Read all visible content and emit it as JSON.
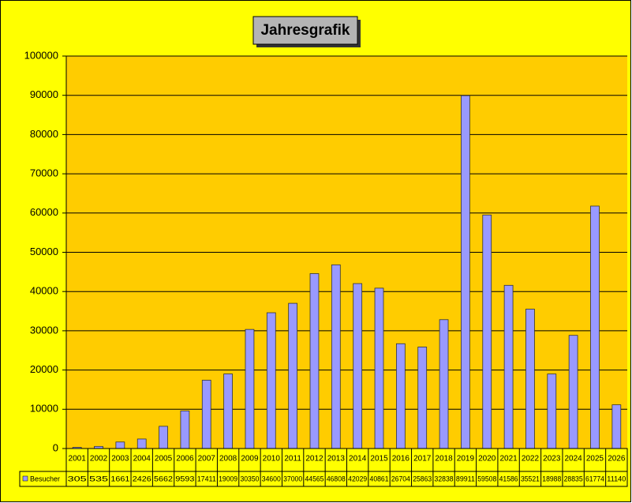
{
  "chart_data": {
    "type": "bar",
    "title": "Jahresgrafik",
    "categories": [
      "2001",
      "2002",
      "2003",
      "2004",
      "2005",
      "2006",
      "2007",
      "2008",
      "2009",
      "2010",
      "2011",
      "2012",
      "2013",
      "2014",
      "2015",
      "2016",
      "2017",
      "2018",
      "2019",
      "2020",
      "2021",
      "2022",
      "2023",
      "2024",
      "2025",
      "2026"
    ],
    "series": [
      {
        "name": "Besucher",
        "color": "#9999ff",
        "values": [
          305,
          535,
          1661,
          2426,
          5662,
          9593,
          17411,
          19009,
          30350,
          34600,
          37000,
          44565,
          46808,
          42029,
          40861,
          26704,
          25863,
          32838,
          89911,
          59508,
          41586,
          35521,
          18988,
          28835,
          61774,
          11140
        ]
      }
    ],
    "ylim": [
      0,
      100000
    ],
    "yticks": [
      0,
      10000,
      20000,
      30000,
      40000,
      50000,
      60000,
      70000,
      80000,
      90000,
      100000
    ],
    "grid": true,
    "data_table": true
  }
}
